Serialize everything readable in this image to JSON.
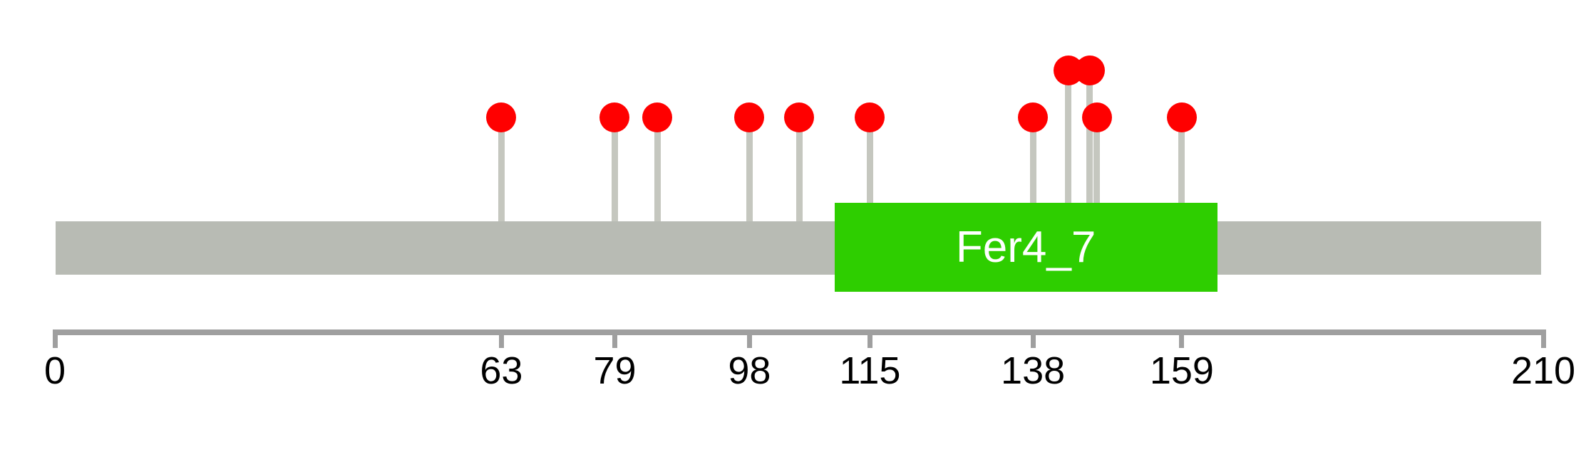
{
  "chart_data": {
    "type": "lollipop",
    "title": "",
    "description": "Protein domain mutation lollipop plot",
    "protein_length": 210,
    "xlim": [
      0,
      210
    ],
    "grid": false,
    "legend_position": "none",
    "axis_ticks": [
      0,
      63,
      79,
      98,
      115,
      138,
      159,
      210
    ],
    "domains": [
      {
        "label": "Fer4_7",
        "start": 110,
        "end": 164
      }
    ],
    "mutations": [
      {
        "pos": 63,
        "level": "normal"
      },
      {
        "pos": 79,
        "level": "normal"
      },
      {
        "pos": 85,
        "level": "normal"
      },
      {
        "pos": 98,
        "level": "normal"
      },
      {
        "pos": 105,
        "level": "normal"
      },
      {
        "pos": 115,
        "level": "normal"
      },
      {
        "pos": 138,
        "level": "normal"
      },
      {
        "pos": 143,
        "level": "raised"
      },
      {
        "pos": 146,
        "level": "raised"
      },
      {
        "pos": 147,
        "level": "normal"
      },
      {
        "pos": 159,
        "level": "normal"
      }
    ],
    "colors": {
      "backbone": "#B8BBB4",
      "stem": "#C5C7BF",
      "marker": "#FF0000",
      "domain_fill": "#2ECE00",
      "domain_text": "#FFFFFF",
      "axis": "#9F9F9F",
      "tick_label": "#000000"
    }
  }
}
